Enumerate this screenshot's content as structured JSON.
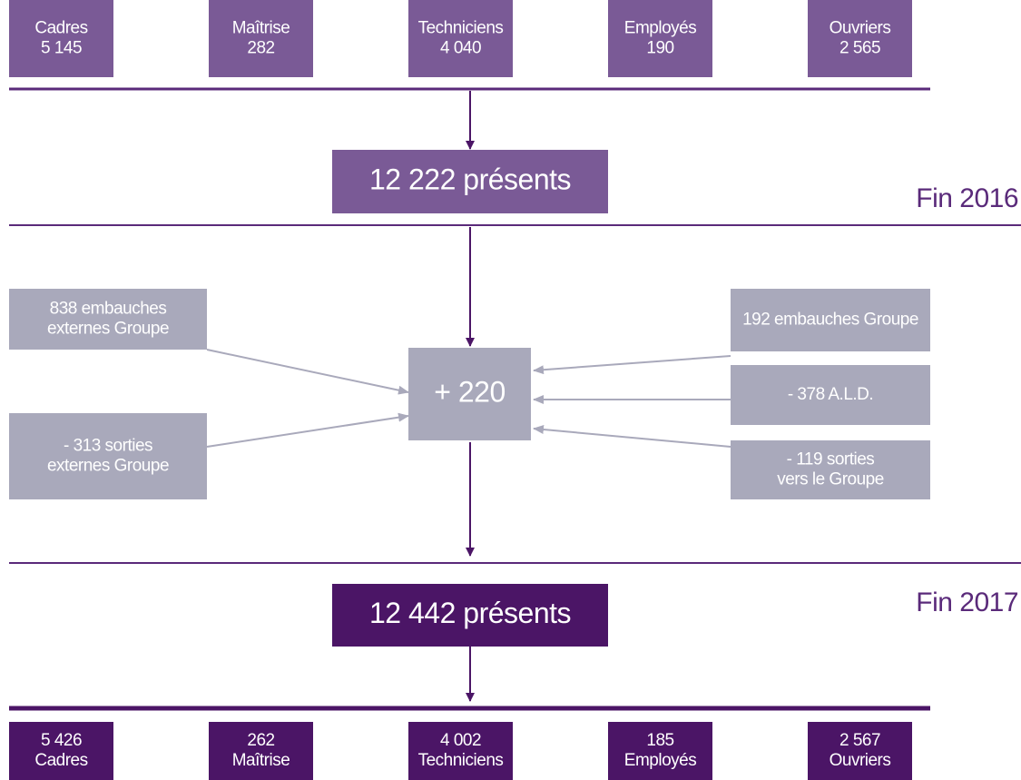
{
  "top_boxes": [
    {
      "label": "Cadres",
      "value": "5 145"
    },
    {
      "label": "Maîtrise",
      "value": "282"
    },
    {
      "label": "Techniciens",
      "value": "4 040"
    },
    {
      "label": "Employés",
      "value": "190"
    },
    {
      "label": "Ouvriers",
      "value": "2 565"
    }
  ],
  "start_total": "12 222 présents",
  "start_label": "Fin 2016",
  "change": "+ 220",
  "left_flows": [
    {
      "lines": [
        "838 embauches",
        "externes Groupe"
      ]
    },
    {
      "lines": [
        "- 313 sorties",
        "externes Groupe"
      ]
    }
  ],
  "right_flows": [
    {
      "lines": [
        "192 embauches Groupe"
      ]
    },
    {
      "lines": [
        "- 378 A.L.D."
      ]
    },
    {
      "lines": [
        "- 119 sorties",
        "vers le Groupe"
      ]
    }
  ],
  "end_total": "12 442 présents",
  "end_label": "Fin 2017",
  "bottom_boxes": [
    {
      "value": "5 426",
      "label": "Cadres"
    },
    {
      "value": "262",
      "label": "Maîtrise"
    },
    {
      "value": "4 002",
      "label": "Techniciens"
    },
    {
      "value": "185",
      "label": "Employés"
    },
    {
      "value": "2 567",
      "label": "Ouvriers"
    }
  ]
}
